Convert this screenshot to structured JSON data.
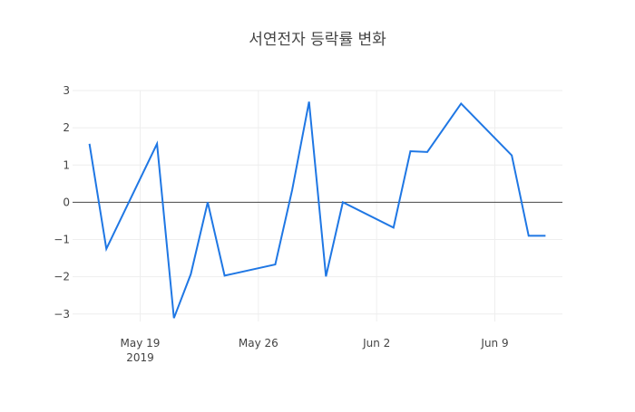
{
  "chart_data": {
    "type": "line",
    "title": "서연전자 등락률 변화",
    "xlabel": "",
    "ylabel": "",
    "x": [
      "2019-05-16",
      "2019-05-17",
      "2019-05-20",
      "2019-05-21",
      "2019-05-22",
      "2019-05-23",
      "2019-05-24",
      "2019-05-27",
      "2019-05-28",
      "2019-05-29",
      "2019-05-30",
      "2019-05-31",
      "2019-06-03",
      "2019-06-04",
      "2019-06-05",
      "2019-06-07",
      "2019-06-10",
      "2019-06-11",
      "2019-06-12"
    ],
    "series": [
      {
        "name": "",
        "color": "#1f77e4",
        "values": [
          1.57,
          -1.25,
          1.57,
          -3.11,
          -1.93,
          0.0,
          -1.97,
          -1.67,
          0.33,
          2.7,
          -1.99,
          0.0,
          -0.68,
          1.37,
          1.35,
          2.65,
          1.26,
          -0.9,
          -0.9
        ]
      }
    ],
    "dates": [
      "2019-05-16",
      "2019-05-17",
      "2019-05-18",
      "2019-05-19",
      "2019-05-20",
      "2019-05-21",
      "2019-05-22",
      "2019-05-23",
      "2019-05-24",
      "2019-05-25",
      "2019-05-26",
      "2019-05-27",
      "2019-05-28",
      "2019-05-29",
      "2019-05-30",
      "2019-05-31",
      "2019-06-01",
      "2019-06-02",
      "2019-06-03",
      "2019-06-04",
      "2019-06-05",
      "2019-06-06",
      "2019-06-07",
      "2019-06-08",
      "2019-06-09",
      "2019-06-10",
      "2019-06-11",
      "2019-06-12",
      "2019-06-13"
    ],
    "xlim": [
      "2019-05-15",
      "2019-06-13"
    ],
    "ylim": [
      -3.2,
      3.0
    ],
    "x_ticks": [
      {
        "date": "2019-05-19",
        "label": "May 19",
        "sublabel": "2019"
      },
      {
        "date": "2019-05-26",
        "label": "May 26",
        "sublabel": ""
      },
      {
        "date": "2019-06-02",
        "label": "Jun 2",
        "sublabel": ""
      },
      {
        "date": "2019-06-09",
        "label": "Jun 9",
        "sublabel": ""
      }
    ],
    "y_ticks": [
      {
        "value": 3,
        "label": "3"
      },
      {
        "value": 2,
        "label": "2"
      },
      {
        "value": 1,
        "label": "1"
      },
      {
        "value": 0,
        "label": "0"
      },
      {
        "value": -1,
        "label": "−1"
      },
      {
        "value": -2,
        "label": "−2"
      },
      {
        "value": -3,
        "label": "−3"
      }
    ],
    "grid": true,
    "zero_line": true,
    "line_color": "#1f77e4",
    "grid_color": "#eeeeee",
    "axis_text_color": "#444444"
  }
}
